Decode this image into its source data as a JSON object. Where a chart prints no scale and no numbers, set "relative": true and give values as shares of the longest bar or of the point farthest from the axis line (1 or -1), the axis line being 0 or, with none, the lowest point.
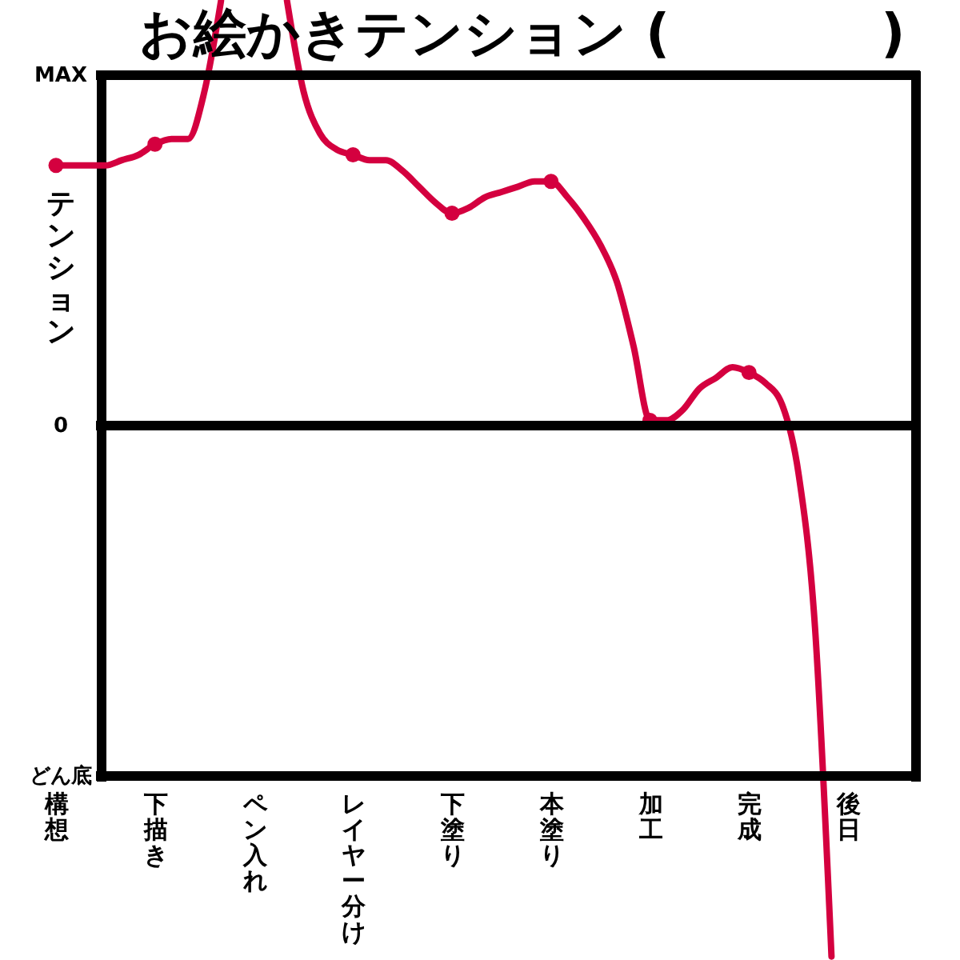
{
  "chart_data": {
    "type": "line",
    "title": "お絵かきテンション (　　　　)",
    "ylabel": "テンション",
    "relative": true,
    "categories": [
      "構想",
      null,
      null,
      null,
      null,
      null,
      "下描き",
      null,
      null,
      null,
      null,
      null,
      "ペン入れ",
      null,
      null,
      null,
      null,
      null,
      "レイヤー分け",
      null,
      null,
      null,
      null,
      null,
      "下塗り",
      null,
      null,
      null,
      null,
      null,
      "本塗り",
      null,
      null,
      null,
      null,
      null,
      "加工",
      null,
      null,
      null,
      null,
      null,
      "完成",
      null,
      null,
      null,
      null,
      null,
      "後日"
    ],
    "ref_lines": [
      {
        "axis": "y",
        "value": 0.66,
        "label": "MAX",
        "color": "#000000"
      },
      {
        "axis": "y",
        "value": 0,
        "label": "0",
        "color": "#000000"
      },
      {
        "axis": "y",
        "value": -0.66,
        "label": "どん底",
        "color": "#000000"
      }
    ],
    "series": [
      {
        "type": "line",
        "color": "#d4003f",
        "values": [
          0.49,
          0.49,
          0.49,
          0.49,
          0.5,
          0.51,
          0.53,
          0.54,
          0.54,
          0.63,
          0.8,
          null,
          null,
          null,
          0.8,
          0.63,
          0.55,
          0.52,
          0.51,
          0.5,
          0.5,
          0.48,
          0.45,
          0.42,
          0.4,
          0.41,
          0.43,
          0.44,
          0.45,
          0.46,
          0.46,
          0.43,
          0.39,
          0.34,
          0.27,
          0.15,
          0.01,
          0.01,
          0.03,
          0.07,
          0.09,
          0.11,
          0.1,
          0.08,
          0.04,
          -0.09,
          -0.38,
          -1,
          null
        ]
      },
      {
        "type": "scatter",
        "color": "#d4003f",
        "marker": "circle",
        "values": [
          0.49,
          null,
          null,
          null,
          null,
          null,
          0.53,
          null,
          null,
          null,
          null,
          null,
          null,
          null,
          null,
          null,
          null,
          null,
          0.51,
          null,
          null,
          null,
          null,
          null,
          0.4,
          null,
          null,
          null,
          null,
          null,
          0.46,
          null,
          null,
          null,
          null,
          null,
          0.01,
          null,
          null,
          null,
          null,
          null,
          0.1,
          null,
          null,
          null,
          null,
          null,
          null
        ]
      }
    ]
  }
}
